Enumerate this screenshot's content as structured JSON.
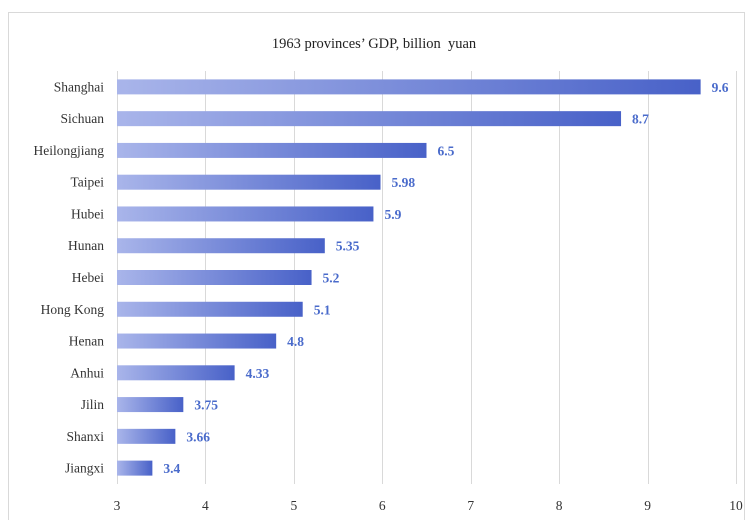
{
  "chart_data": {
    "type": "bar",
    "orientation": "horizontal",
    "title": "1963 provinces’ GDP, billion  yuan",
    "categories": [
      "Shanghai",
      "Sichuan",
      "Heilongjiang",
      "Taipei",
      "Hubei",
      "Hunan",
      "Hebei",
      "Hong Kong",
      "Henan",
      "Anhui",
      "Jilin",
      "Shanxi",
      "Jiangxi"
    ],
    "values": [
      9.6,
      8.7,
      6.5,
      5.98,
      5.9,
      5.35,
      5.2,
      5.1,
      4.8,
      4.33,
      3.75,
      3.66,
      3.4
    ],
    "xlim": [
      3,
      10
    ],
    "x_ticks": [
      3,
      4,
      5,
      6,
      7,
      8,
      9,
      10
    ],
    "xlabel": "",
    "ylabel": "",
    "grid": "vertical",
    "legend": "none",
    "data_labels": true,
    "colors": {
      "bar_gradient_start": "#a9b5ea",
      "bar_gradient_end": "#4861c8",
      "value_label": "#4a6bcb",
      "grid": "#d9d9d9",
      "text": "#333333"
    }
  }
}
